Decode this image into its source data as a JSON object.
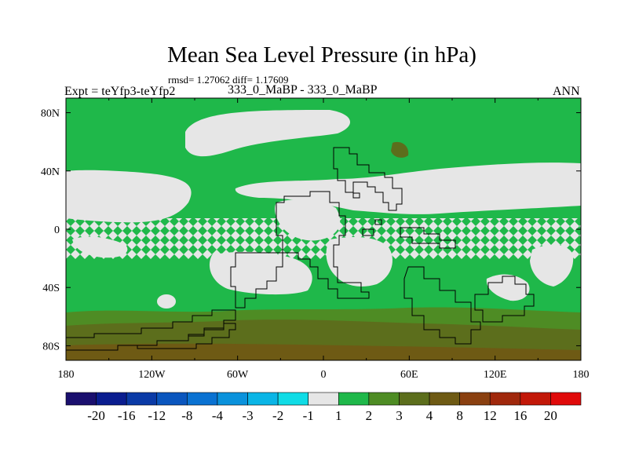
{
  "title": "Mean Sea Level Pressure (in hPa)",
  "stats_text": "rmsd= 1.27062 diff= 1.17609",
  "experiment_label": "Expt = teYfp3-teYfp2",
  "case_label": "333_0_MaBP - 333_0_MaBP",
  "season_label": "ANN",
  "map": {
    "projection": "cylindrical equidistant",
    "lon_ticks": [
      "180",
      "120W",
      "60W",
      "0",
      "60E",
      "120E",
      "180"
    ],
    "lat_ticks": [
      "80N",
      "40N",
      "0",
      "40S",
      "80S"
    ],
    "field_colors": {
      "interval_-1_1": "#e6e6e6",
      "interval_1_2": "#1fb84a",
      "interval_2_3": "#4e8c24",
      "interval_3_4": "#5c6e1c",
      "interval_4_8": "#6e5a14"
    },
    "coastline_color": "#000000"
  },
  "colorbar": {
    "labels": [
      "-20",
      "-16",
      "-12",
      "-8",
      "-4",
      "-3",
      "-2",
      "-1",
      "1",
      "2",
      "3",
      "4",
      "8",
      "12",
      "16",
      "20"
    ],
    "colors": [
      "#1a0f6e",
      "#0a1d8f",
      "#0a3aa6",
      "#0a56be",
      "#0a72d2",
      "#0a92dc",
      "#0ab5e6",
      "#10dce6",
      "#e6e6e6",
      "#1fb84a",
      "#4e8c24",
      "#5c6e1c",
      "#6e5a14",
      "#8a4010",
      "#a0280c",
      "#c21808",
      "#e00a0a"
    ]
  }
}
